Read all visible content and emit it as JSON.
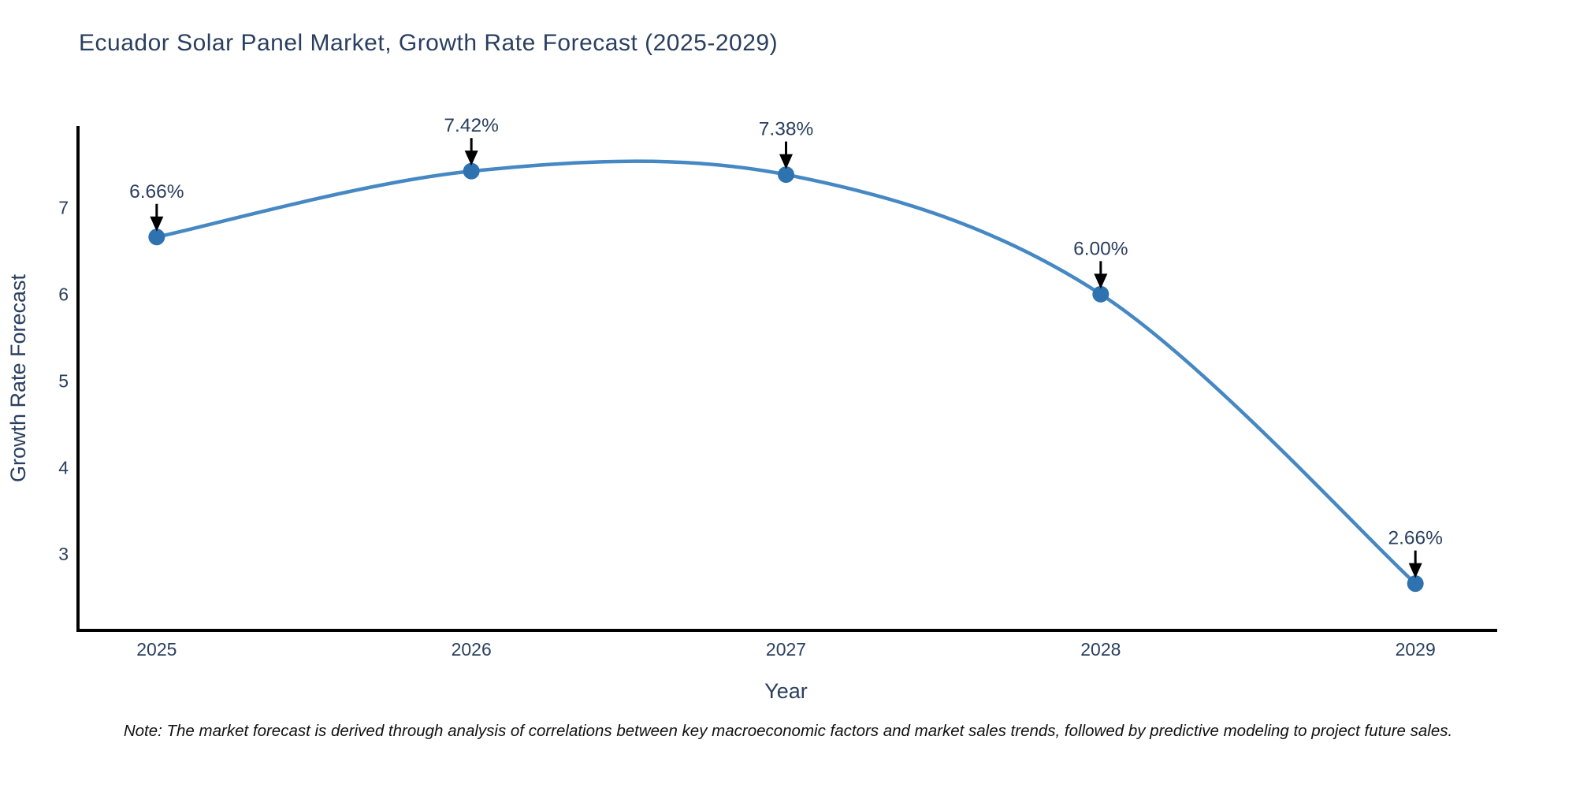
{
  "title": "Ecuador Solar Panel Market, Growth Rate Forecast (2025-2029)",
  "note": "Note: The market forecast is derived through analysis of correlations between key macroeconomic factors and market sales trends, followed by predictive modeling to project future sales.",
  "chart_data": {
    "type": "line",
    "title": "Ecuador Solar Panel Market, Growth Rate Forecast (2025-2029)",
    "xlabel": "Year",
    "ylabel": "Growth Rate Forecast",
    "x": [
      2025,
      2026,
      2027,
      2028,
      2029
    ],
    "values": [
      6.66,
      7.42,
      7.38,
      6.0,
      2.66
    ],
    "point_labels": [
      "6.66%",
      "7.42%",
      "7.38%",
      "6.00%",
      "2.66%"
    ],
    "line_shape": "spline",
    "grid": false,
    "legend": "none",
    "xticks": [
      "2025",
      "2026",
      "2027",
      "2028",
      "2029"
    ],
    "yticks": [
      3,
      4,
      5,
      6,
      7
    ],
    "xlim": [
      2024.75,
      2029.26
    ],
    "ylim": [
      2.12,
      7.94
    ],
    "colors": {
      "line": "#4688c3",
      "marker": "#2f72b0",
      "axis": "#000000",
      "text": "#2a3f5f",
      "annotation_text": "#2a3f5f",
      "annotation_arrow": "#000000",
      "background": "#ffffff"
    }
  }
}
